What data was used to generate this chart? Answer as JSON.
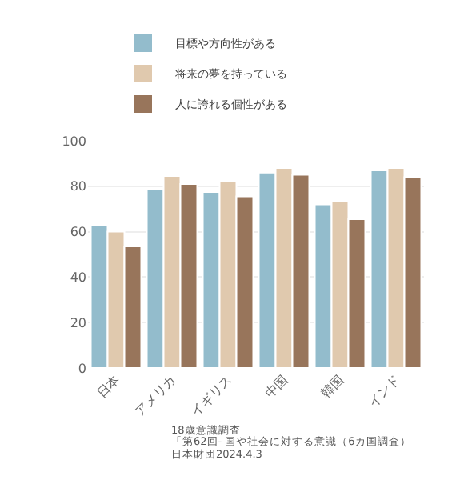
{
  "chart_data": {
    "type": "bar",
    "categories": [
      "日本",
      "アメリカ",
      "イギリス",
      "中国",
      "韓国",
      "インド"
    ],
    "series": [
      {
        "name": "目標や方向性がある",
        "color": "#93bccc",
        "values": [
          63,
          78.5,
          77.5,
          86,
          72,
          87
        ]
      },
      {
        "name": "将来の夢を持っている",
        "color": "#e0c9ae",
        "values": [
          60,
          84.5,
          82,
          88,
          73.5,
          88
        ]
      },
      {
        "name": "人に誇れる個性がある",
        "color": "#98755b",
        "values": [
          53.5,
          81,
          75.5,
          85,
          65.5,
          84
        ]
      }
    ],
    "ylim": [
      0,
      100
    ],
    "yticks": [
      0,
      20,
      40,
      60,
      80,
      100
    ],
    "grid": "y",
    "legend": "top",
    "annotations": [
      "18歳意識調査",
      "「第62回- 国や社会に対する意識（6カ国調査）",
      "日本財団2024.4.3"
    ]
  }
}
